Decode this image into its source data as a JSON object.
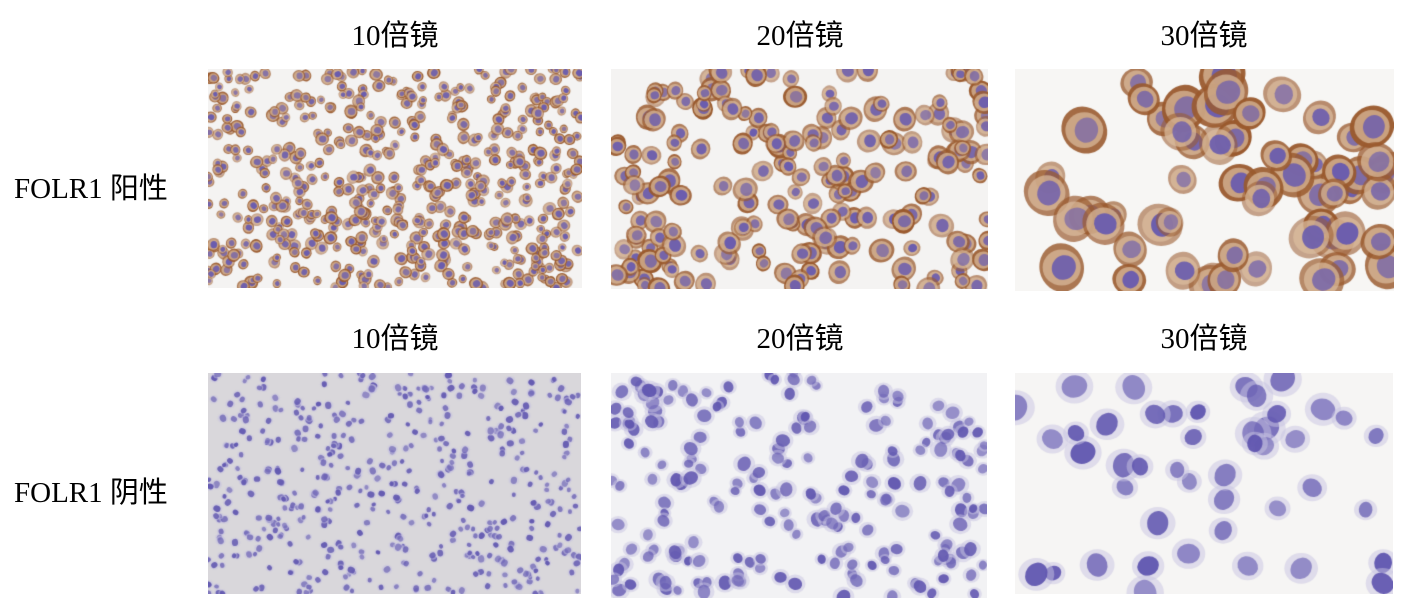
{
  "figure": {
    "rows": [
      {
        "label": "FOLR1 阳性",
        "stain": "positive",
        "panels": [
          {
            "magnification": "10倍镜"
          },
          {
            "magnification": "20倍镜"
          },
          {
            "magnification": "30倍镜"
          }
        ]
      },
      {
        "label": "FOLR1 阴性",
        "stain": "negative",
        "panels": [
          {
            "magnification": "10倍镜"
          },
          {
            "magnification": "20倍镜"
          },
          {
            "magnification": "30倍镜"
          }
        ]
      }
    ],
    "colors": {
      "membrane_brown": "#9a5a2e",
      "nucleus_purple": "#6a5cae",
      "background_light": "#f4f3f2",
      "background_gray": "#d9d7db"
    }
  }
}
